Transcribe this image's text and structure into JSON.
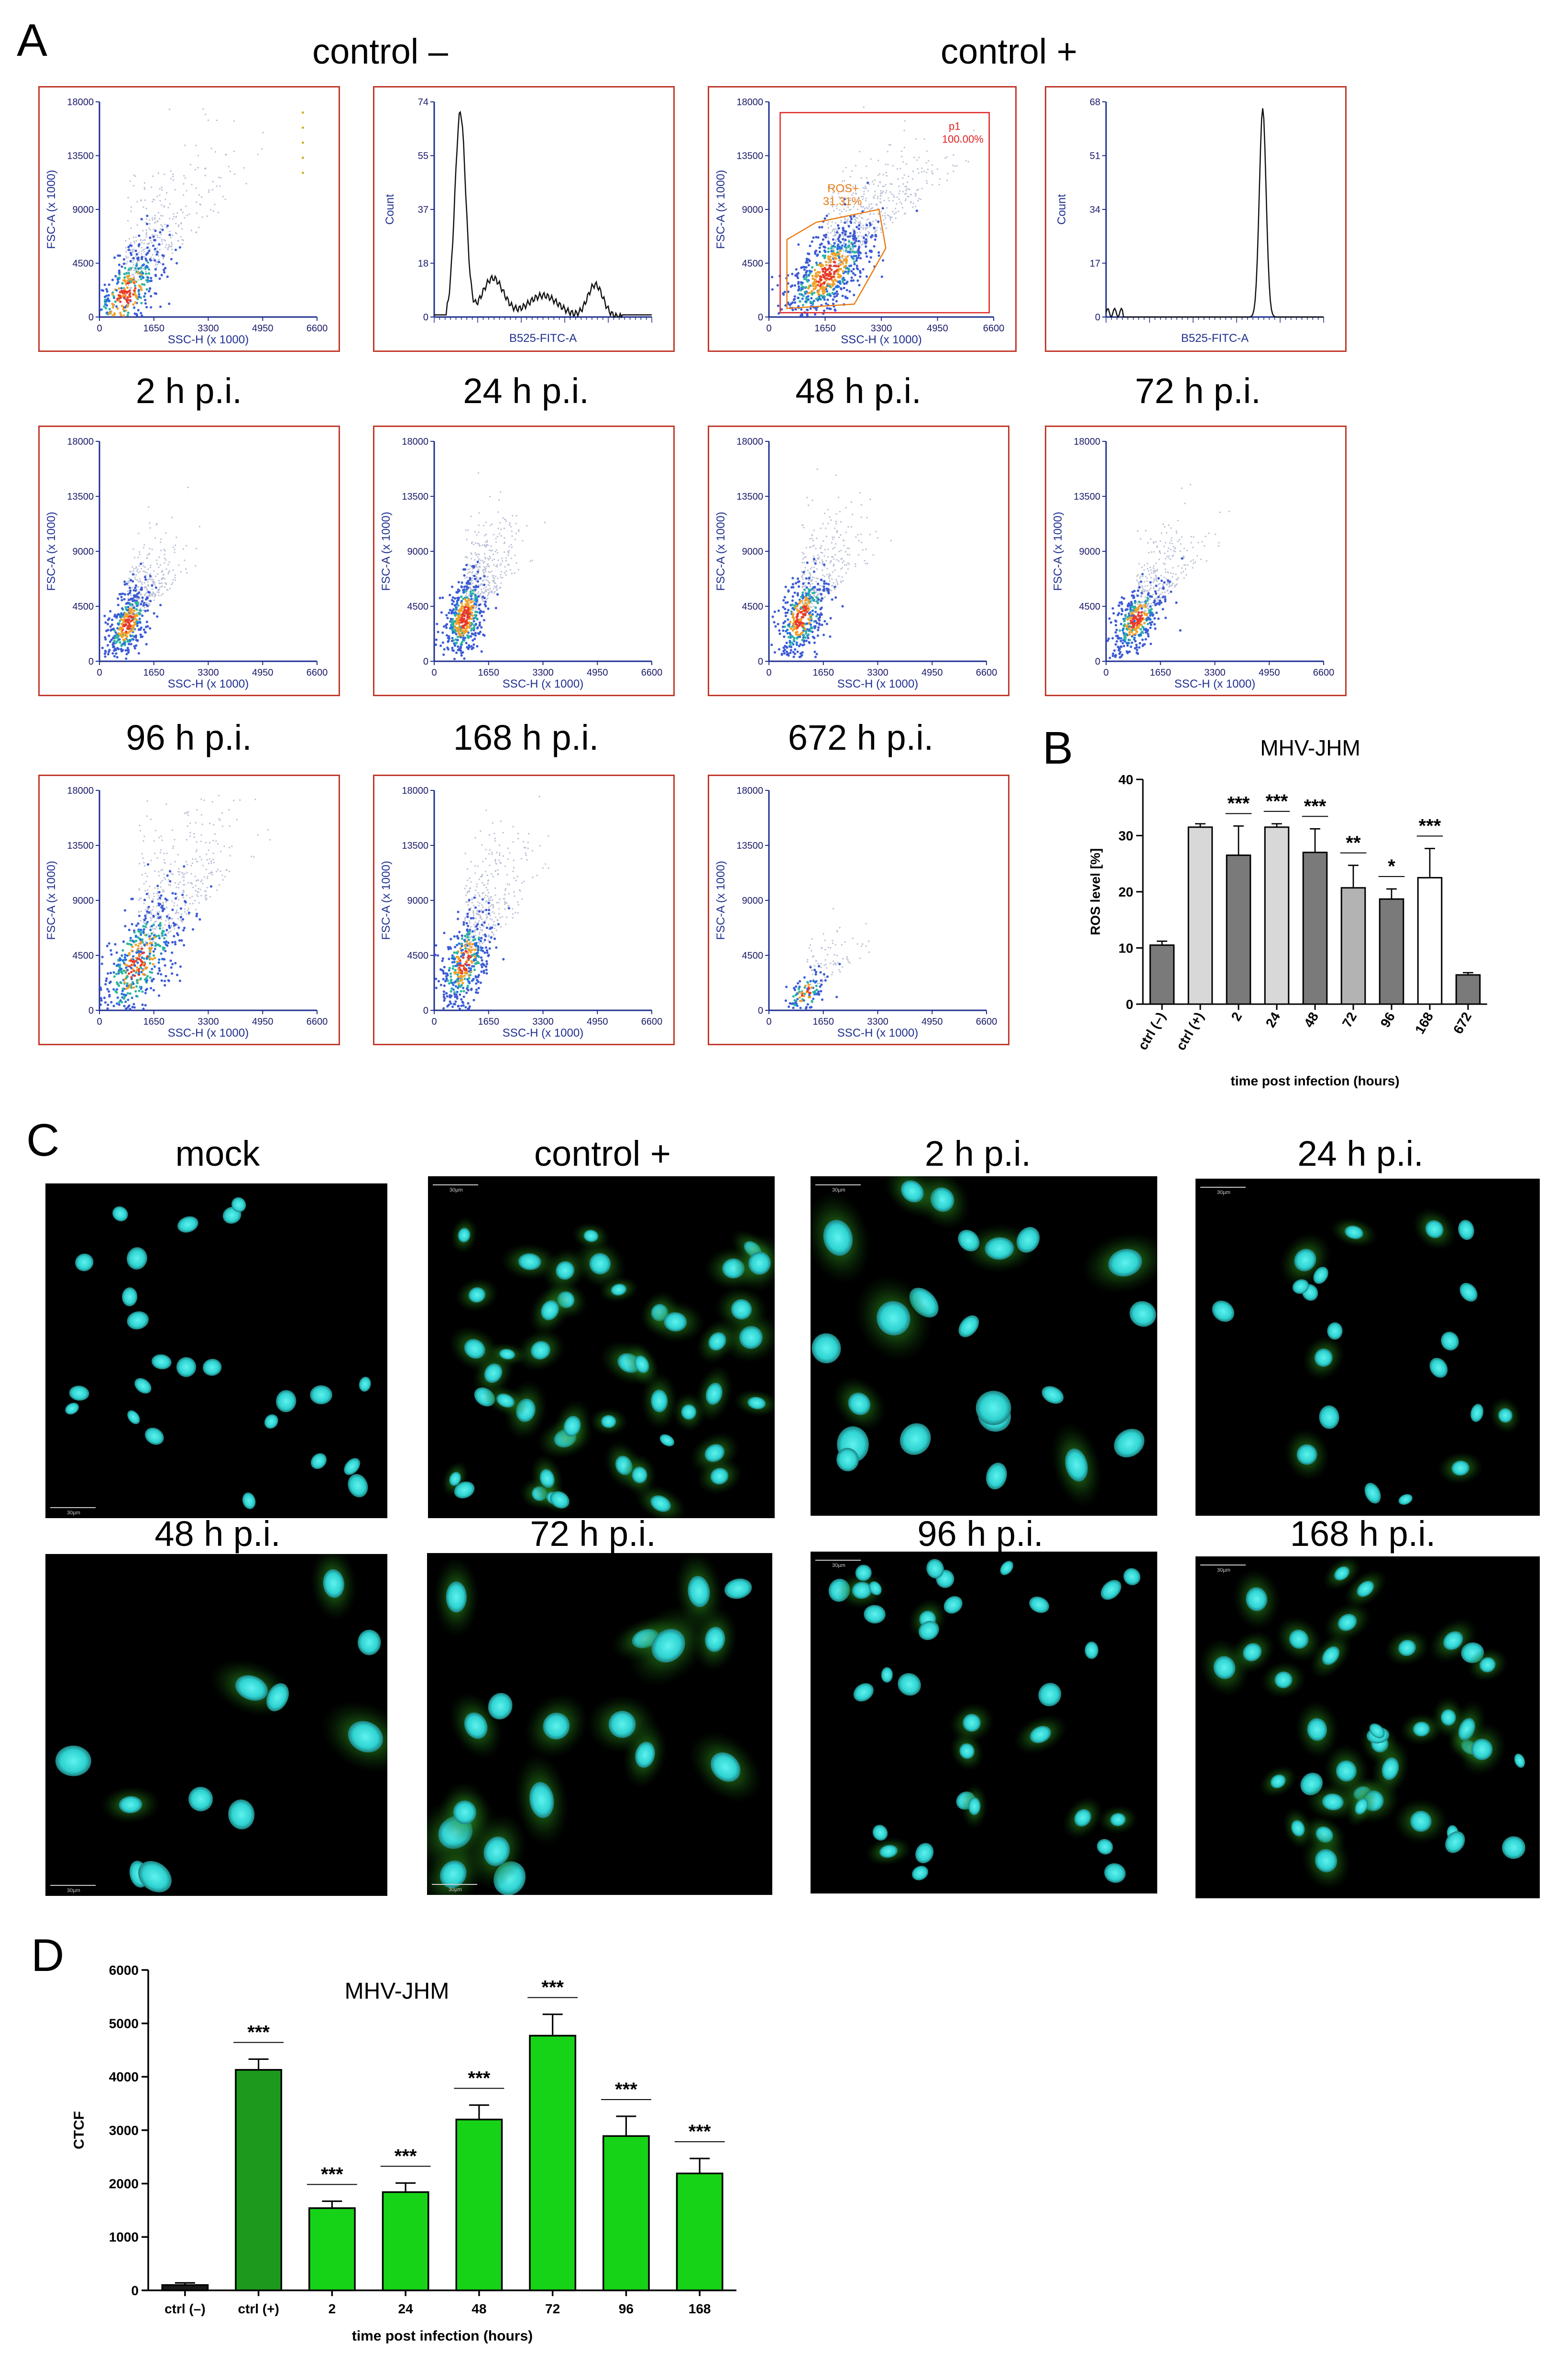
{
  "figure": {
    "panel_a": {
      "letter": "A",
      "group_labels": [
        "control –",
        "control +"
      ],
      "plot_captions": [
        "2 h p.i.",
        "24 h p.i.",
        "48 h p.i.",
        "72 h p.i.",
        "96 h p.i.",
        "168 h p.i.",
        "672 h p.i."
      ],
      "scatter_axis": {
        "x_label": "SSC-H (x 1000)",
        "y_label": "FSC-A (x 1000)",
        "x_ticks": [
          "0",
          "1650",
          "3300",
          "4950",
          "6600"
        ],
        "y_ticks": [
          "0",
          "4500",
          "9000",
          "13500",
          "18000"
        ]
      },
      "hist_neg": {
        "x_label": "B525-FITC-A",
        "y_label": "Count",
        "y_ticks": [
          "0",
          "18",
          "37",
          "55",
          "74"
        ]
      },
      "hist_pos": {
        "x_label": "B525-FITC-A",
        "y_label": "Count",
        "y_ticks": [
          "0",
          "17",
          "34",
          "51",
          "68"
        ]
      },
      "gate_p1": {
        "name": "p1",
        "value": "100.00%"
      },
      "gate_ros": {
        "name": "ROS+",
        "value": "31.31%"
      },
      "colors": {
        "frame": "#c0392b",
        "axis": "#1f2f8f",
        "gate_p1": "#e02020",
        "gate_ros": "#e87d14"
      }
    },
    "panel_b": {
      "letter": "B"
    },
    "panel_c": {
      "letter": "C",
      "labels": [
        "mock",
        "control +",
        "2 h p.i.",
        "24 h p.i.",
        "48 h p.i.",
        "72 h p.i.",
        "96 h p.i.",
        "168 h p.i."
      ],
      "scale_bar": "30µm",
      "colors": {
        "nuclei": "#2ed3d1",
        "ros": "#3fbf2a",
        "background": "#000000"
      }
    },
    "panel_d": {
      "letter": "D"
    }
  },
  "chart_data": [
    {
      "type": "bar",
      "title": "MHV-JHM",
      "categories": [
        "ctrl (–)",
        "ctrl (+)",
        "2",
        "24",
        "48",
        "72",
        "96",
        "168",
        "672"
      ],
      "values": [
        10.5,
        31.5,
        26.5,
        31.5,
        27,
        20.7,
        18.7,
        22.5,
        5.2
      ],
      "errors": [
        0.7,
        0.6,
        5.2,
        0.6,
        4.2,
        4.0,
        1.8,
        5.2,
        0.4
      ],
      "significance": [
        "",
        "",
        "***",
        "***",
        "***",
        "**",
        "*",
        "***",
        ""
      ],
      "bar_colors": [
        "#7a7a7a",
        "#d8d8d8",
        "#7a7a7a",
        "#d8d8d8",
        "#7a7a7a",
        "#b3b3b3",
        "#7a7a7a",
        "#ffffff",
        "#7a7a7a"
      ],
      "xlabel": "time post infection (hours)",
      "ylabel": "ROS level [%]",
      "ylim": [
        0,
        40
      ],
      "yticks": [
        0,
        10,
        20,
        30,
        40
      ]
    },
    {
      "type": "bar",
      "title": "MHV-JHM",
      "categories": [
        "ctrl (–)",
        "ctrl (+)",
        "2",
        "24",
        "48",
        "72",
        "96",
        "168"
      ],
      "values": [
        100,
        4130,
        1540,
        1840,
        3200,
        4770,
        2890,
        2190
      ],
      "errors": [
        40,
        200,
        130,
        170,
        270,
        400,
        370,
        280
      ],
      "significance": [
        "",
        "***",
        "***",
        "***",
        "***",
        "***",
        "***",
        "***"
      ],
      "bar_colors": [
        "#1a1a1a",
        "#1d9a1d",
        "#17d317",
        "#17d317",
        "#17d317",
        "#17d317",
        "#17d317",
        "#17d317"
      ],
      "xlabel": "time post infection (hours)",
      "ylabel": "CTCF",
      "ylim": [
        0,
        6000
      ],
      "yticks": [
        0,
        1000,
        2000,
        3000,
        4000,
        5000,
        6000
      ]
    }
  ]
}
